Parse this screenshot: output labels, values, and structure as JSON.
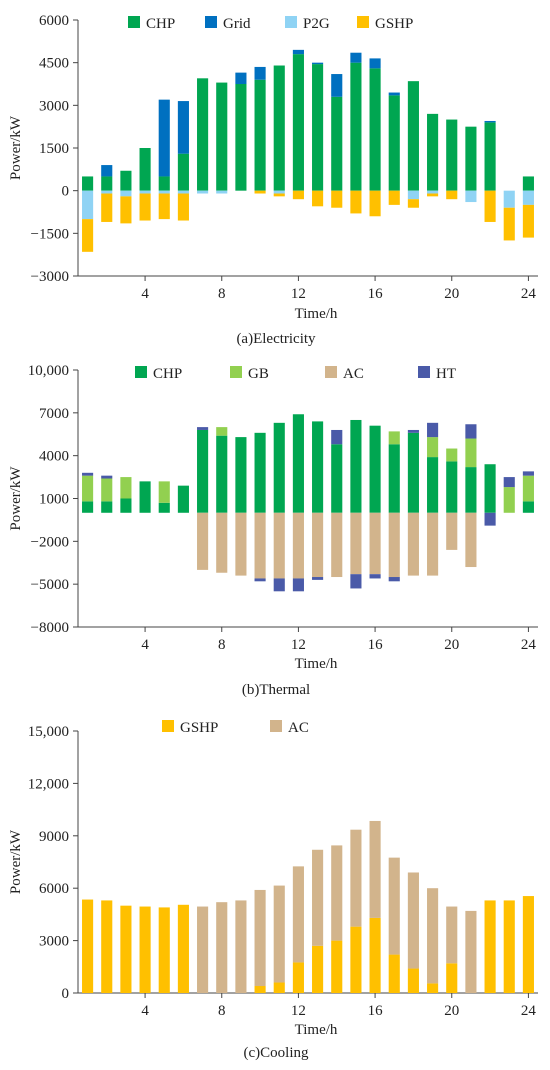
{
  "chart_data": [
    {
      "type": "bar",
      "stacked": true,
      "caption": "(a)Electricity",
      "xlabel": "Time/h",
      "ylabel": "Power/kW",
      "ylim": [
        -3000,
        6000
      ],
      "y_ticks": [
        -3000,
        -1500,
        0,
        1500,
        3000,
        4500,
        6000
      ],
      "y_tick_labels": [
        "−3000",
        "−1500",
        "0",
        "1500",
        "3000",
        "4500",
        "6000"
      ],
      "x_ticks": [
        4,
        8,
        12,
        16,
        20,
        24
      ],
      "x_tick_labels": [
        "4",
        "8",
        "12",
        "16",
        "20",
        "24"
      ],
      "x": [
        1,
        2,
        3,
        4,
        5,
        6,
        7,
        8,
        9,
        10,
        11,
        12,
        13,
        14,
        15,
        16,
        17,
        18,
        19,
        20,
        21,
        22,
        23,
        24
      ],
      "legend_position": "top",
      "series": [
        {
          "name": "CHP",
          "color": "#00a651",
          "values": [
            500,
            500,
            700,
            1500,
            500,
            1300,
            3950,
            3800,
            3750,
            3900,
            4400,
            4800,
            4450,
            3300,
            4500,
            4300,
            3350,
            3850,
            2700,
            2500,
            2250,
            2400,
            0,
            500
          ]
        },
        {
          "name": "Grid",
          "color": "#0070c0",
          "values": [
            0,
            400,
            0,
            0,
            2700,
            1850,
            0,
            0,
            400,
            450,
            0,
            150,
            50,
            800,
            350,
            350,
            100,
            0,
            0,
            0,
            0,
            50,
            0,
            0
          ]
        },
        {
          "name": "P2G",
          "color": "#8fd3f4",
          "values": [
            -1000,
            -100,
            -200,
            -100,
            -100,
            -100,
            -100,
            -100,
            0,
            0,
            -100,
            0,
            0,
            0,
            0,
            0,
            0,
            -300,
            -100,
            0,
            -400,
            0,
            -600,
            -500
          ]
        },
        {
          "name": "GSHP",
          "color": "#ffc000",
          "values": [
            -1150,
            -1000,
            -950,
            -950,
            -900,
            -950,
            0,
            0,
            0,
            -100,
            -100,
            -300,
            -550,
            -600,
            -800,
            -900,
            -500,
            -300,
            -100,
            -300,
            0,
            -1100,
            -1150,
            -1150
          ]
        }
      ]
    },
    {
      "type": "bar",
      "stacked": true,
      "caption": "(b)Thermal",
      "xlabel": "Time/h",
      "ylabel": "Power/kW",
      "ylim": [
        -8000,
        10000
      ],
      "y_ticks": [
        -8000,
        -5000,
        -2000,
        1000,
        4000,
        7000,
        10000
      ],
      "y_tick_labels": [
        "−8000",
        "−5000",
        "−2000",
        "1000",
        "4000",
        "7000",
        "10,000"
      ],
      "x_ticks": [
        4,
        8,
        12,
        16,
        20,
        24
      ],
      "x_tick_labels": [
        "4",
        "8",
        "12",
        "16",
        "20",
        "24"
      ],
      "x": [
        1,
        2,
        3,
        4,
        5,
        6,
        7,
        8,
        9,
        10,
        11,
        12,
        13,
        14,
        15,
        16,
        17,
        18,
        19,
        20,
        21,
        22,
        23,
        24
      ],
      "legend_position": "top",
      "series": [
        {
          "name": "CHP",
          "color": "#00a651",
          "values": [
            800,
            800,
            1000,
            2200,
            700,
            1900,
            5800,
            5400,
            5300,
            5600,
            6300,
            6900,
            6400,
            4800,
            6500,
            6100,
            4800,
            5600,
            3900,
            3600,
            3200,
            3400,
            0,
            800
          ]
        },
        {
          "name": "GB",
          "color": "#92d050",
          "values": [
            1800,
            1600,
            1500,
            0,
            1500,
            0,
            0,
            600,
            0,
            0,
            0,
            0,
            0,
            0,
            0,
            0,
            900,
            0,
            1400,
            900,
            2000,
            0,
            1800,
            1800
          ]
        },
        {
          "name": "AC",
          "color": "#d2b48c",
          "values": [
            0,
            0,
            0,
            0,
            0,
            0,
            -4000,
            -4200,
            -4400,
            -4600,
            -4600,
            -4600,
            -4500,
            -4500,
            -4300,
            -4300,
            -4500,
            -4400,
            -4400,
            -2600,
            -3800,
            0,
            0,
            0
          ]
        },
        {
          "name": "HT",
          "color": "#4a5aa8",
          "values": [
            200,
            200,
            0,
            0,
            0,
            0,
            200,
            0,
            0,
            -200,
            -900,
            -900,
            -200,
            1000,
            -1000,
            -300,
            -300,
            200,
            1000,
            0,
            1000,
            -900,
            700,
            300
          ]
        }
      ]
    },
    {
      "type": "bar",
      "stacked": true,
      "caption": "(c)Cooling",
      "xlabel": "Time/h",
      "ylabel": "Power/kW",
      "ylim": [
        0,
        15000
      ],
      "y_ticks": [
        0,
        3000,
        6000,
        9000,
        12000,
        15000
      ],
      "y_tick_labels": [
        "0",
        "3000",
        "6000",
        "9000",
        "12,000",
        "15,000"
      ],
      "x_ticks": [
        4,
        8,
        12,
        16,
        20,
        24
      ],
      "x_tick_labels": [
        "4",
        "8",
        "12",
        "16",
        "20",
        "24"
      ],
      "x": [
        1,
        2,
        3,
        4,
        5,
        6,
        7,
        8,
        9,
        10,
        11,
        12,
        13,
        14,
        15,
        16,
        17,
        18,
        19,
        20,
        21,
        22,
        23,
        24
      ],
      "legend_position": "top",
      "series": [
        {
          "name": "GSHP",
          "color": "#ffc000",
          "values": [
            5350,
            5300,
            5000,
            4950,
            4900,
            5050,
            0,
            0,
            0,
            400,
            600,
            1750,
            2700,
            3000,
            3800,
            4300,
            2200,
            1400,
            550,
            1700,
            0,
            5300,
            5300,
            5550
          ]
        },
        {
          "name": "AC",
          "color": "#d2b48c",
          "values": [
            0,
            0,
            0,
            0,
            0,
            0,
            4950,
            5200,
            5300,
            5500,
            5550,
            5500,
            5500,
            5450,
            5550,
            5550,
            5550,
            5500,
            5450,
            3250,
            4700,
            0,
            0,
            0
          ]
        }
      ]
    }
  ]
}
